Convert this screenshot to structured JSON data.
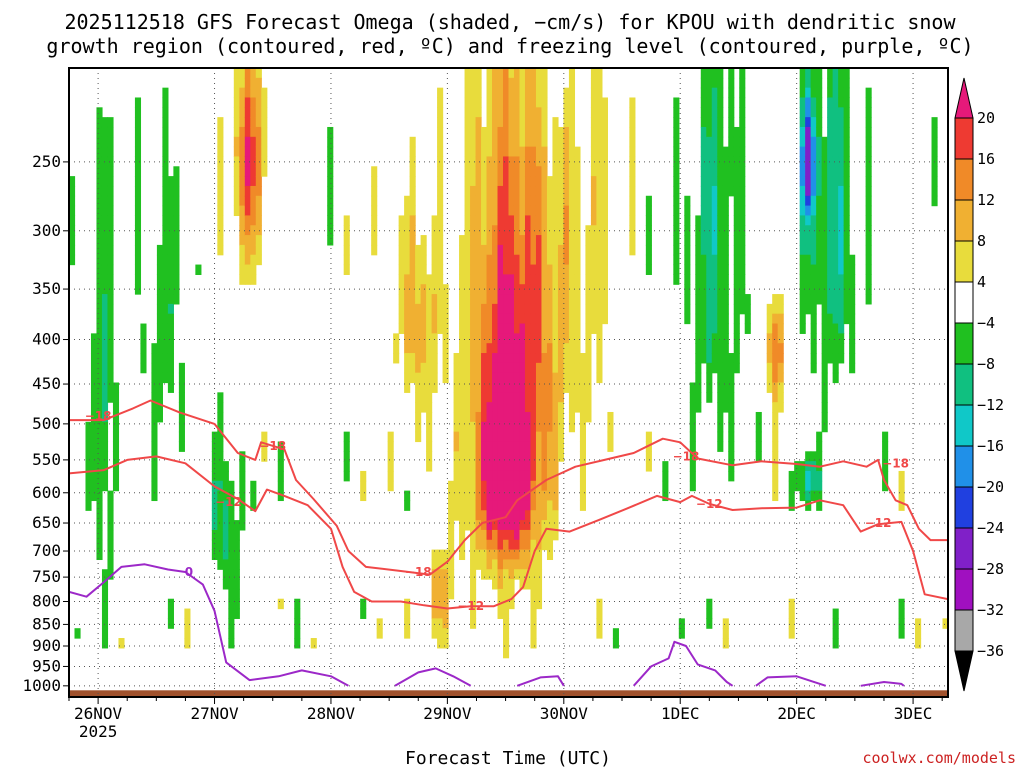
{
  "chart_data": {
    "type": "heatmap",
    "title_line1": "2025112518 GFS Forecast Omega (shaded, −cm/s) for KPOU with dendritic snow",
    "title_line2": "growth region (contoured, red, ºC) and freezing level (contoured, purple, ºC)",
    "xlabel": "Forecast Time (UTC)",
    "ylabel": "",
    "credit": "coolwx.com/models",
    "x_range_days": [
      -0.25,
      7.3
    ],
    "x_ticks": [
      {
        "day": 0,
        "label": "26NOV",
        "sublabel": "2025"
      },
      {
        "day": 1,
        "label": "27NOV"
      },
      {
        "day": 2,
        "label": "28NOV"
      },
      {
        "day": 3,
        "label": "29NOV"
      },
      {
        "day": 4,
        "label": "30NOV"
      },
      {
        "day": 5,
        "label": "1DEC"
      },
      {
        "day": 6,
        "label": "2DEC"
      },
      {
        "day": 7,
        "label": "3DEC"
      }
    ],
    "y_axis_hPa_top_bottom": [
      195,
      1030
    ],
    "y_ticks": [
      250,
      300,
      350,
      400,
      450,
      500,
      550,
      600,
      650,
      700,
      750,
      800,
      850,
      900,
      950,
      1000
    ],
    "colorbar": {
      "levels": [
        -36,
        -32,
        -28,
        -24,
        -20,
        -16,
        -12,
        -8,
        -4,
        4,
        8,
        12,
        16,
        20
      ],
      "labels": [
        "20",
        "16",
        "12",
        "8",
        "4",
        "−4",
        "−8",
        "−12",
        "−16",
        "−20",
        "−24",
        "−28",
        "−32",
        "−36"
      ],
      "colors": {
        "gt20": "#e6197a",
        "16_20": "#ee3a32",
        "12_16": "#f08a28",
        "8_12": "#f0b032",
        "4_8": "#e8dc3c",
        "m4_4": "#ffffff",
        "m8_m4": "#20c020",
        "m12_m8": "#10c080",
        "m16_m12": "#10c8c8",
        "m20_m16": "#2090e8",
        "m24_m20": "#2040e0",
        "m28_m24": "#8020c8",
        "m32_m28": "#a010c0",
        "m36_m32": "#a8a8a8",
        "lt_m36": "#000000"
      }
    },
    "omega_features": [
      {
        "center_day": 3.55,
        "center_hPa": 430,
        "half_width_day": 0.35,
        "half_depth_hPa": 250,
        "peak": 22
      },
      {
        "center_day": 3.5,
        "center_hPa": 600,
        "half_width_day": 0.25,
        "half_depth_hPa": 120,
        "peak": 16
      },
      {
        "center_day": 1.3,
        "center_hPa": 250,
        "half_width_day": 0.15,
        "half_depth_hPa": 70,
        "peak": 17
      },
      {
        "center_day": 2.95,
        "center_hPa": 780,
        "half_width_day": 0.12,
        "half_depth_hPa": 90,
        "peak": 10
      },
      {
        "center_day": 2.75,
        "center_hPa": 380,
        "half_width_day": 0.18,
        "half_depth_hPa": 100,
        "peak": 10
      },
      {
        "center_day": 5.82,
        "center_hPa": 410,
        "half_width_day": 0.06,
        "half_depth_hPa": 60,
        "peak": 18
      },
      {
        "center_day": 4.15,
        "center_hPa": 320,
        "half_width_day": 0.3,
        "half_depth_hPa": 180,
        "peak": 6
      },
      {
        "center_day": 0.55,
        "center_hPa": 400,
        "half_width_day": 0.2,
        "half_depth_hPa": 150,
        "peak": -6
      },
      {
        "center_day": 1.1,
        "center_hPa": 650,
        "half_width_day": 0.15,
        "half_depth_hPa": 150,
        "peak": -8
      },
      {
        "center_day": 6.3,
        "center_hPa": 300,
        "half_width_day": 0.25,
        "half_depth_hPa": 150,
        "peak": -10
      },
      {
        "center_day": 6.1,
        "center_hPa": 250,
        "half_width_day": 0.06,
        "half_depth_hPa": 40,
        "peak": -22
      },
      {
        "center_day": 5.3,
        "center_hPa": 320,
        "half_width_day": 0.25,
        "half_depth_hPa": 180,
        "peak": -9
      },
      {
        "center_day": 6.1,
        "center_hPa": 580,
        "half_width_day": 0.08,
        "half_depth_hPa": 40,
        "peak": -17
      },
      {
        "center_day": 0.05,
        "center_hPa": 500,
        "half_width_day": 0.1,
        "half_depth_hPa": 250,
        "peak": -9
      },
      {
        "center_day": 3.95,
        "center_hPa": 150,
        "half_width_day": 0.15,
        "half_depth_hPa": 60,
        "peak": -8
      }
    ],
    "contours": [
      {
        "name": "dgz-minus18-upper",
        "color": "#f04848",
        "label": "−18",
        "points": [
          [
            -0.25,
            495
          ],
          [
            0.05,
            495
          ],
          [
            0.3,
            480
          ],
          [
            0.45,
            470
          ],
          [
            0.7,
            485
          ],
          [
            1.0,
            500
          ],
          [
            1.2,
            540
          ],
          [
            1.35,
            550
          ],
          [
            1.4,
            525
          ],
          [
            1.6,
            535
          ],
          [
            1.7,
            580
          ],
          [
            1.85,
            610
          ],
          [
            2.05,
            655
          ],
          [
            2.15,
            700
          ],
          [
            2.3,
            730
          ],
          [
            2.6,
            738
          ],
          [
            2.85,
            745
          ],
          [
            3.0,
            720
          ],
          [
            3.15,
            680
          ],
          [
            3.3,
            650
          ],
          [
            3.5,
            640
          ],
          [
            3.6,
            612
          ],
          [
            3.85,
            580
          ],
          [
            4.1,
            560
          ],
          [
            4.35,
            550
          ],
          [
            4.6,
            540
          ],
          [
            4.85,
            520
          ],
          [
            5.0,
            525
          ],
          [
            5.15,
            548
          ],
          [
            5.45,
            558
          ],
          [
            5.7,
            552
          ],
          [
            6.0,
            556
          ],
          [
            6.2,
            560
          ],
          [
            6.4,
            552
          ],
          [
            6.6,
            560
          ],
          [
            6.7,
            550
          ],
          [
            6.75,
            580
          ],
          [
            6.85,
            612
          ],
          [
            6.95,
            620
          ],
          [
            7.05,
            660
          ],
          [
            7.15,
            680
          ],
          [
            7.3,
            680
          ]
        ]
      },
      {
        "name": "dgz-minus12-lower",
        "color": "#f04848",
        "label": "−12",
        "points": [
          [
            -0.25,
            570
          ],
          [
            0.05,
            565
          ],
          [
            0.25,
            550
          ],
          [
            0.5,
            545
          ],
          [
            0.75,
            555
          ],
          [
            1.0,
            590
          ],
          [
            1.2,
            610
          ],
          [
            1.35,
            630
          ],
          [
            1.45,
            595
          ],
          [
            1.6,
            605
          ],
          [
            1.8,
            620
          ],
          [
            2.0,
            660
          ],
          [
            2.1,
            730
          ],
          [
            2.2,
            780
          ],
          [
            2.35,
            800
          ],
          [
            2.6,
            800
          ],
          [
            2.8,
            808
          ],
          [
            3.0,
            815
          ],
          [
            3.2,
            810
          ],
          [
            3.4,
            810
          ],
          [
            3.55,
            795
          ],
          [
            3.65,
            770
          ],
          [
            3.75,
            700
          ],
          [
            3.85,
            660
          ],
          [
            4.05,
            665
          ],
          [
            4.3,
            645
          ],
          [
            4.55,
            625
          ],
          [
            4.8,
            605
          ],
          [
            5.0,
            615
          ],
          [
            5.1,
            605
          ],
          [
            5.25,
            618
          ],
          [
            5.45,
            628
          ],
          [
            5.7,
            625
          ],
          [
            6.0,
            624
          ],
          [
            6.2,
            612
          ],
          [
            6.4,
            620
          ],
          [
            6.55,
            665
          ],
          [
            6.7,
            652
          ],
          [
            6.9,
            648
          ],
          [
            7.0,
            700
          ],
          [
            7.1,
            785
          ],
          [
            7.3,
            795
          ]
        ]
      },
      {
        "name": "freezing-level",
        "color": "#9c28c8",
        "label": "0",
        "points": [
          [
            -0.25,
            780
          ],
          [
            -0.1,
            790
          ],
          [
            0.05,
            760
          ],
          [
            0.2,
            730
          ],
          [
            0.4,
            725
          ],
          [
            0.6,
            735
          ],
          [
            0.75,
            740
          ],
          [
            0.9,
            765
          ],
          [
            1.0,
            820
          ],
          [
            1.1,
            940
          ],
          [
            1.3,
            985
          ],
          [
            1.55,
            975
          ],
          [
            1.75,
            960
          ],
          [
            2.0,
            975
          ],
          [
            2.15,
            1000
          ]
        ]
      },
      {
        "name": "freezing-level-bump-29",
        "color": "#9c28c8",
        "label": "",
        "points": [
          [
            2.55,
            1000
          ],
          [
            2.75,
            965
          ],
          [
            2.9,
            955
          ],
          [
            3.05,
            975
          ],
          [
            3.2,
            1000
          ]
        ]
      },
      {
        "name": "freezing-level-bump-30",
        "color": "#9c28c8",
        "label": "",
        "points": [
          [
            3.6,
            1000
          ],
          [
            3.8,
            978
          ],
          [
            3.95,
            975
          ],
          [
            4.0,
            1000
          ]
        ]
      },
      {
        "name": "freezing-level-bump-1dec",
        "color": "#9c28c8",
        "label": "",
        "points": [
          [
            4.6,
            1000
          ],
          [
            4.75,
            950
          ],
          [
            4.9,
            930
          ],
          [
            4.95,
            890
          ],
          [
            5.05,
            900
          ],
          [
            5.15,
            945
          ],
          [
            5.3,
            960
          ],
          [
            5.4,
            990
          ],
          [
            5.45,
            1000
          ]
        ]
      },
      {
        "name": "freezing-level-bump-2dec",
        "color": "#9c28c8",
        "label": "",
        "points": [
          [
            5.65,
            1000
          ],
          [
            5.75,
            978
          ],
          [
            6.0,
            975
          ],
          [
            6.25,
            1000
          ]
        ]
      },
      {
        "name": "freezing-level-bump-3dec",
        "color": "#9c28c8",
        "label": "",
        "points": [
          [
            6.55,
            1000
          ],
          [
            6.75,
            990
          ],
          [
            6.9,
            995
          ],
          [
            6.92,
            1000
          ]
        ]
      }
    ],
    "contour_labels": [
      {
        "text": "−18",
        "day": 0.0,
        "hPa": 490,
        "color": "#f04848"
      },
      {
        "text": "−18",
        "day": 1.5,
        "hPa": 530,
        "color": "#f04848"
      },
      {
        "text": "−12",
        "day": 1.12,
        "hPa": 615,
        "color": "#f04848"
      },
      {
        "text": "−18",
        "day": 2.75,
        "hPa": 740,
        "color": "#f04848"
      },
      {
        "text": "−12",
        "day": 3.2,
        "hPa": 810,
        "color": "#f04848"
      },
      {
        "text": "−18",
        "day": 5.05,
        "hPa": 545,
        "color": "#f04848"
      },
      {
        "text": "−12",
        "day": 5.25,
        "hPa": 618,
        "color": "#f04848"
      },
      {
        "text": "−18",
        "day": 6.85,
        "hPa": 555,
        "color": "#f04848"
      },
      {
        "text": "−12",
        "day": 6.7,
        "hPa": 650,
        "color": "#f04848"
      },
      {
        "text": "0",
        "day": 0.78,
        "hPa": 740,
        "color": "#9c28c8"
      }
    ],
    "surface_level_hPa": 1012,
    "surface_color": "#a0522d"
  }
}
